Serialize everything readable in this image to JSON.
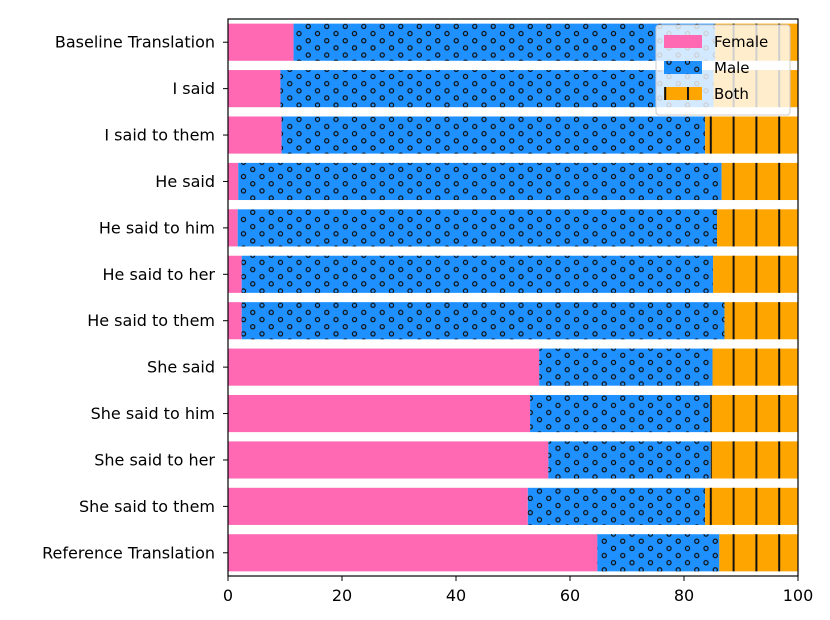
{
  "chart_data": {
    "type": "bar",
    "orientation": "horizontal",
    "stacked": true,
    "categories": [
      "Baseline Translation",
      "I said",
      "I said to them",
      "He said",
      "He said to him",
      "He said to her",
      "He said to them",
      "She said",
      "She said to him",
      "She said to her",
      "She said to them",
      "Reference Translation"
    ],
    "series": [
      {
        "name": "Female",
        "color": "#ff69b4",
        "pattern": "none",
        "values": [
          11.5,
          9.2,
          9.4,
          1.8,
          1.7,
          2.4,
          2.4,
          54.6,
          53.0,
          56.2,
          52.6,
          64.8
        ]
      },
      {
        "name": "Male",
        "color": "#1e90ff",
        "pattern": "dots",
        "values": [
          74.0,
          76.0,
          74.3,
          84.8,
          84.1,
          82.7,
          84.7,
          30.4,
          31.6,
          28.5,
          31.1,
          21.4
        ]
      },
      {
        "name": "Both",
        "color": "#ffa500",
        "pattern": "vertical-lines",
        "values": [
          14.5,
          14.8,
          16.3,
          13.4,
          14.2,
          14.9,
          12.9,
          15.0,
          15.4,
          15.3,
          16.3,
          13.8
        ]
      }
    ],
    "xlim": [
      0,
      100
    ],
    "xticks": [
      0,
      20,
      40,
      60,
      80,
      100
    ],
    "xlabel": "",
    "ylabel": "",
    "grid": false,
    "legend_position": "top-right"
  }
}
